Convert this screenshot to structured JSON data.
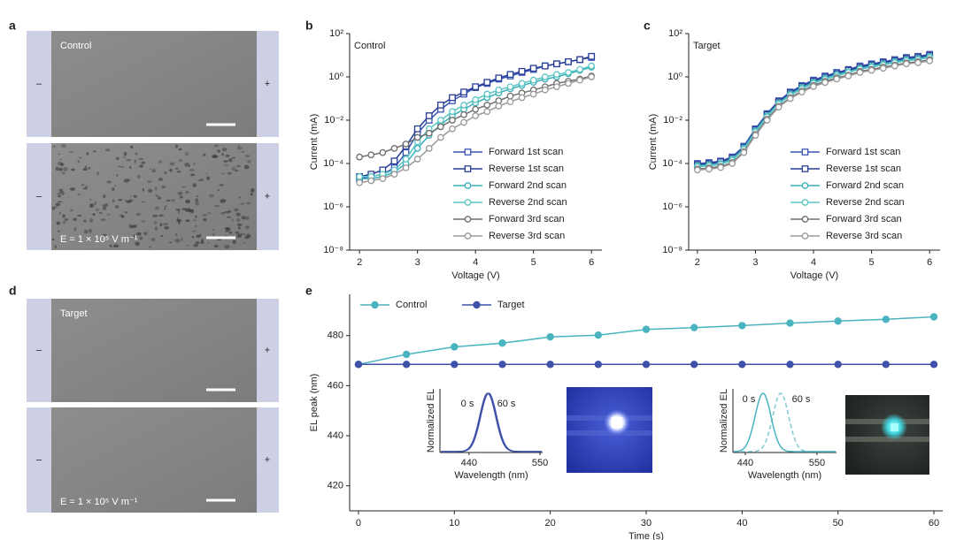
{
  "images": [
    {
      "panel": "a",
      "frames": [
        {
          "label": "Control",
          "left": "–",
          "right": "+"
        },
        {
          "label": "E = 1 × 10⁵ V m⁻¹",
          "left": "–",
          "right": "+"
        }
      ]
    },
    {
      "panel": "d",
      "frames": [
        {
          "label": "Target",
          "left": "–",
          "right": "+"
        },
        {
          "label": "E = 1 × 10⁵ V m⁻¹",
          "left": "–",
          "right": "+"
        }
      ]
    }
  ],
  "chart_data": [
    {
      "type": "line",
      "panel": "b",
      "title": "Control",
      "x_label": "Voltage (V)",
      "y_label": "Current (mA)",
      "log_y": true,
      "legend": "lower right",
      "x": [
        2,
        2.2,
        2.4,
        2.6,
        2.8,
        3,
        3.2,
        3.4,
        3.6,
        3.8,
        4,
        4.2,
        4.4,
        4.6,
        4.8,
        5,
        5.2,
        5.4,
        5.6,
        5.8,
        6
      ],
      "xlim": [
        1.83,
        6.18
      ],
      "xticks": [
        2,
        3,
        4,
        5,
        6
      ],
      "ylim": [
        1e-08,
        100
      ],
      "yticks": [
        {
          "value": 1e-08,
          "label": "10⁻⁸"
        },
        {
          "value": 1e-06,
          "label": "10⁻⁶"
        },
        {
          "value": 0.0001,
          "label": "10⁻⁴"
        },
        {
          "value": 0.01,
          "label": "10⁻²"
        },
        {
          "value": 1,
          "label": "10⁰"
        },
        {
          "value": 100,
          "label": "10²"
        }
      ],
      "series": [
        {
          "name": "Forward 1st scan",
          "color": "#3a55b4",
          "marker": "square",
          "values": [
            2e-05,
            2.5e-05,
            3.2e-05,
            6.3e-05,
            0.00032,
            0.0025,
            0.01,
            0.032,
            0.079,
            0.16,
            0.32,
            0.5,
            0.79,
            1.1,
            1.6,
            2.2,
            3.2,
            4,
            5,
            6.3,
            7.9
          ]
        },
        {
          "name": "Reverse 1st scan",
          "color": "#283d96",
          "marker": "square",
          "values": [
            2.5e-05,
            3.2e-05,
            5e-05,
            0.00013,
            0.00063,
            0.004,
            0.016,
            0.05,
            0.11,
            0.2,
            0.35,
            0.56,
            0.89,
            1.3,
            1.8,
            2.5,
            3.2,
            4,
            5,
            6.3,
            8.9
          ]
        },
        {
          "name": "Forward 2nd scan",
          "color": "#3aafb8",
          "marker": "circle",
          "values": [
            2e-05,
            2e-05,
            2.5e-05,
            4e-05,
            0.0001,
            0.0005,
            0.002,
            0.0063,
            0.016,
            0.032,
            0.063,
            0.11,
            0.18,
            0.28,
            0.4,
            0.56,
            0.79,
            1,
            1.4,
            2,
            2.8
          ]
        },
        {
          "name": "Reverse 2nd scan",
          "color": "#5cc6c4",
          "marker": "circle",
          "values": [
            2.5e-05,
            2.5e-05,
            3.2e-05,
            5e-05,
            0.00016,
            0.001,
            0.004,
            0.01,
            0.025,
            0.05,
            0.089,
            0.16,
            0.25,
            0.35,
            0.5,
            0.71,
            1,
            1.3,
            1.6,
            2.2,
            3.2
          ]
        },
        {
          "name": "Forward 3rd scan",
          "color": "#6e6e6e",
          "marker": "circle",
          "values": [
            0.0002,
            0.00025,
            0.00032,
            0.0005,
            0.00079,
            0.0016,
            0.0025,
            0.005,
            0.01,
            0.018,
            0.032,
            0.05,
            0.079,
            0.13,
            0.18,
            0.25,
            0.35,
            0.5,
            0.63,
            0.79,
            1.1
          ]
        },
        {
          "name": "Reverse 3rd scan",
          "color": "#9a9a9a",
          "marker": "circle",
          "values": [
            1.3e-05,
            1.6e-05,
            2e-05,
            3.2e-05,
            6.3e-05,
            0.00016,
            0.0005,
            0.0016,
            0.004,
            0.0079,
            0.016,
            0.025,
            0.045,
            0.071,
            0.11,
            0.16,
            0.25,
            0.35,
            0.5,
            0.71,
            1
          ]
        }
      ]
    },
    {
      "type": "line",
      "panel": "c",
      "title": "Target",
      "x_label": "Voltage (V)",
      "y_label": "Current (mA)",
      "log_y": true,
      "legend": "lower right",
      "x": [
        2,
        2.2,
        2.4,
        2.6,
        2.8,
        3,
        3.2,
        3.4,
        3.6,
        3.8,
        4,
        4.2,
        4.4,
        4.6,
        4.8,
        5,
        5.2,
        5.4,
        5.6,
        5.8,
        6
      ],
      "xlim": [
        1.85,
        6.18
      ],
      "xticks": [
        2,
        3,
        4,
        5,
        6
      ],
      "ylim": [
        1e-08,
        100
      ],
      "yticks": [
        {
          "value": 1e-08,
          "label": "10⁻⁸"
        },
        {
          "value": 1e-06,
          "label": "10⁻⁶"
        },
        {
          "value": 0.0001,
          "label": "10⁻⁴"
        },
        {
          "value": 0.01,
          "label": "10⁻²"
        },
        {
          "value": 1,
          "label": "10⁰"
        },
        {
          "value": 100,
          "label": "10²"
        }
      ],
      "series": [
        {
          "name": "Forward 1st scan",
          "color": "#3a55b4",
          "marker": "square",
          "values": [
            0.0001,
            0.00011,
            0.00013,
            0.0002,
            0.00063,
            0.004,
            0.02,
            0.079,
            0.2,
            0.4,
            0.71,
            1.1,
            1.6,
            2.2,
            3.2,
            4,
            5,
            6.3,
            7.9,
            8.9,
            11
          ]
        },
        {
          "name": "Reverse 1st scan",
          "color": "#283d96",
          "marker": "square",
          "values": [
            8.9e-05,
            9.8e-05,
            0.00012,
            0.00018,
            0.00056,
            0.0036,
            0.018,
            0.07,
            0.18,
            0.36,
            0.63,
            0.98,
            1.4,
            2,
            2.8,
            3.6,
            4.5,
            5.6,
            7,
            7.9,
            9.8
          ]
        },
        {
          "name": "Forward 2nd scan",
          "color": "#3aafb8",
          "marker": "circle",
          "values": [
            7.9e-05,
            8.7e-05,
            0.0001,
            0.00016,
            0.0005,
            0.0032,
            0.016,
            0.062,
            0.16,
            0.32,
            0.56,
            0.87,
            1.3,
            1.7,
            2.5,
            3.2,
            4,
            5,
            6.2,
            7,
            8.7
          ]
        },
        {
          "name": "Reverse 2nd scan",
          "color": "#5cc6c4",
          "marker": "circle",
          "values": [
            7.1e-05,
            7.8e-05,
            9.2e-05,
            0.00014,
            0.00045,
            0.0028,
            0.014,
            0.056,
            0.14,
            0.28,
            0.5,
            0.78,
            1.1,
            1.6,
            2.3,
            2.8,
            3.6,
            4.5,
            5.6,
            6.3,
            7.8
          ]
        },
        {
          "name": "Forward 3rd scan",
          "color": "#6e6e6e",
          "marker": "circle",
          "values": [
            5.6e-05,
            6.2e-05,
            7.3e-05,
            0.00011,
            0.00035,
            0.0022,
            0.011,
            0.044,
            0.11,
            0.22,
            0.4,
            0.62,
            0.9,
            1.2,
            1.8,
            2.2,
            2.8,
            3.5,
            4.4,
            5,
            6.2
          ]
        },
        {
          "name": "Reverse 3rd scan",
          "color": "#9a9a9a",
          "marker": "circle",
          "values": [
            5e-05,
            5.5e-05,
            6.5e-05,
            0.0001,
            0.00032,
            0.002,
            0.01,
            0.04,
            0.1,
            0.2,
            0.36,
            0.55,
            0.8,
            1.1,
            1.6,
            2,
            2.5,
            3.2,
            4,
            4.5,
            5.5
          ]
        }
      ]
    },
    {
      "type": "line",
      "panel": "e",
      "x_label": "Time (s)",
      "y_label": "EL peak (nm)",
      "legend": "top",
      "x": [
        0,
        5,
        10,
        15,
        20,
        25,
        30,
        35,
        40,
        45,
        50,
        55,
        60
      ],
      "xlim": [
        -0.92,
        60.92
      ],
      "xticks": [
        0,
        10,
        20,
        30,
        40,
        50,
        60
      ],
      "ylim": [
        410,
        496.5
      ],
      "yticks": [
        420,
        440,
        460,
        480
      ],
      "series": [
        {
          "name": "Control",
          "color": "#4ab3c0",
          "marker": "dot",
          "values": [
            468.5,
            472.5,
            475.5,
            477,
            479.5,
            480.2,
            482.5,
            483.2,
            484,
            485,
            485.8,
            486.5,
            487.5
          ]
        },
        {
          "name": "Target",
          "color": "#3f51a8",
          "marker": "dot",
          "values": [
            468.5,
            468.5,
            468.5,
            468.5,
            468.5,
            468.5,
            468.5,
            468.5,
            468.5,
            468.5,
            468.5,
            468.5,
            468.5
          ]
        }
      ],
      "insets": [
        {
          "start_label": "0 s",
          "end_label": "60 s",
          "y_label": "Normalized EL",
          "x_label": "Wavelength (nm)",
          "xlim": [
            395,
            554
          ],
          "xticks": [
            440,
            550
          ]
        },
        {
          "start_label": "0 s",
          "end_label": "60 s",
          "y_label": "Normalized EL",
          "x_label": "Wavelength (nm)",
          "xlim": [
            421,
            580
          ],
          "xticks": [
            440,
            550
          ]
        }
      ]
    }
  ]
}
